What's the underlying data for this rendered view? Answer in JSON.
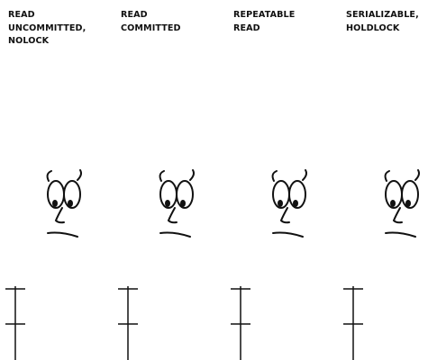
{
  "isolation_levels": [
    {
      "id": "read-uncommitted",
      "label": "READ\nUNCOMMITTED,\nNOLOCK"
    },
    {
      "id": "read-committed",
      "label": "READ\nCOMMITTED"
    },
    {
      "id": "repeatable-read",
      "label": "REPEATABLE\nREAD"
    },
    {
      "id": "serializable",
      "label": "SERIALIZABLE,\nHOLDLOCK"
    }
  ],
  "colors": {
    "ink": "#111111",
    "background": "#ffffff"
  },
  "icons": [
    "cartoon-face-icon",
    "timeline-post-icon"
  ]
}
